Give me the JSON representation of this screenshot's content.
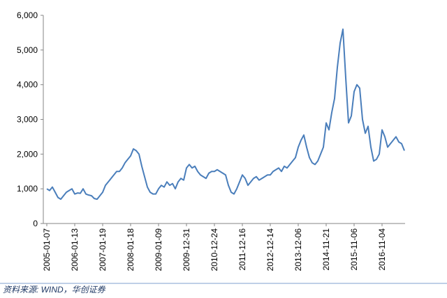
{
  "chart_data": {
    "type": "line",
    "categories": [
      "2005-01-07",
      null,
      null,
      null,
      null,
      null,
      null,
      null,
      null,
      null,
      "2006-01-13",
      null,
      null,
      null,
      null,
      null,
      null,
      null,
      null,
      null,
      "2007-01-19",
      null,
      null,
      null,
      null,
      null,
      null,
      null,
      null,
      null,
      "2008-01-18",
      null,
      null,
      null,
      null,
      null,
      null,
      null,
      null,
      null,
      "2009-01-09",
      null,
      null,
      null,
      null,
      null,
      null,
      null,
      null,
      null,
      "2009-12-31",
      null,
      null,
      null,
      null,
      null,
      null,
      null,
      null,
      null,
      "2010-12-24",
      null,
      null,
      null,
      null,
      null,
      null,
      null,
      null,
      null,
      "2011-12-16",
      null,
      null,
      null,
      null,
      null,
      null,
      null,
      null,
      null,
      "2012-12-14",
      null,
      null,
      null,
      null,
      null,
      null,
      null,
      null,
      null,
      "2013-12-06",
      null,
      null,
      null,
      null,
      null,
      null,
      null,
      null,
      null,
      "2014-11-21",
      null,
      null,
      null,
      null,
      null,
      null,
      null,
      null,
      null,
      "2015-11-06",
      null,
      null,
      null,
      null,
      null,
      null,
      null,
      null,
      null,
      "2016-11-04",
      null,
      null,
      null,
      null,
      null,
      null,
      null,
      null
    ],
    "series": [
      {
        "color": "#4a7ebb",
        "values": [
          1000,
          950,
          1050,
          900,
          750,
          700,
          800,
          900,
          950,
          1000,
          850,
          880,
          870,
          1000,
          850,
          820,
          800,
          720,
          700,
          800,
          900,
          1100,
          1200,
          1300,
          1400,
          1500,
          1500,
          1600,
          1750,
          1850,
          1950,
          2150,
          2100,
          2000,
          1650,
          1350,
          1050,
          900,
          850,
          850,
          1000,
          1100,
          1050,
          1200,
          1100,
          1150,
          1000,
          1200,
          1300,
          1250,
          1600,
          1700,
          1600,
          1650,
          1500,
          1400,
          1350,
          1300,
          1450,
          1500,
          1500,
          1550,
          1500,
          1450,
          1400,
          1100,
          900,
          850,
          1000,
          1200,
          1400,
          1300,
          1100,
          1200,
          1300,
          1350,
          1250,
          1300,
          1350,
          1400,
          1400,
          1500,
          1550,
          1600,
          1500,
          1650,
          1600,
          1700,
          1800,
          1900,
          2200,
          2400,
          2550,
          2200,
          1900,
          1750,
          1700,
          1800,
          2000,
          2200,
          2900,
          2700,
          3200,
          3600,
          4500,
          5200,
          5600,
          4200,
          2900,
          3100,
          3800,
          4000,
          3900,
          3000,
          2600,
          2800,
          2200,
          1800,
          1850,
          2000,
          2700,
          2500,
          2200,
          2300,
          2400,
          2500,
          2350,
          2300,
          2100
        ]
      }
    ],
    "ylim": [
      0,
      6000
    ],
    "yticks": [
      0,
      {
        "value": 1000,
        "label": "1,000"
      },
      {
        "value": 2000,
        "label": "2,000"
      },
      {
        "value": 3000,
        "label": "3,000"
      },
      {
        "value": 4000,
        "label": "4,000"
      },
      {
        "value": 5000,
        "label": "5,000"
      },
      {
        "value": 6000,
        "label": "6,000"
      }
    ],
    "source": "资料来源: WIND，华创证券"
  }
}
